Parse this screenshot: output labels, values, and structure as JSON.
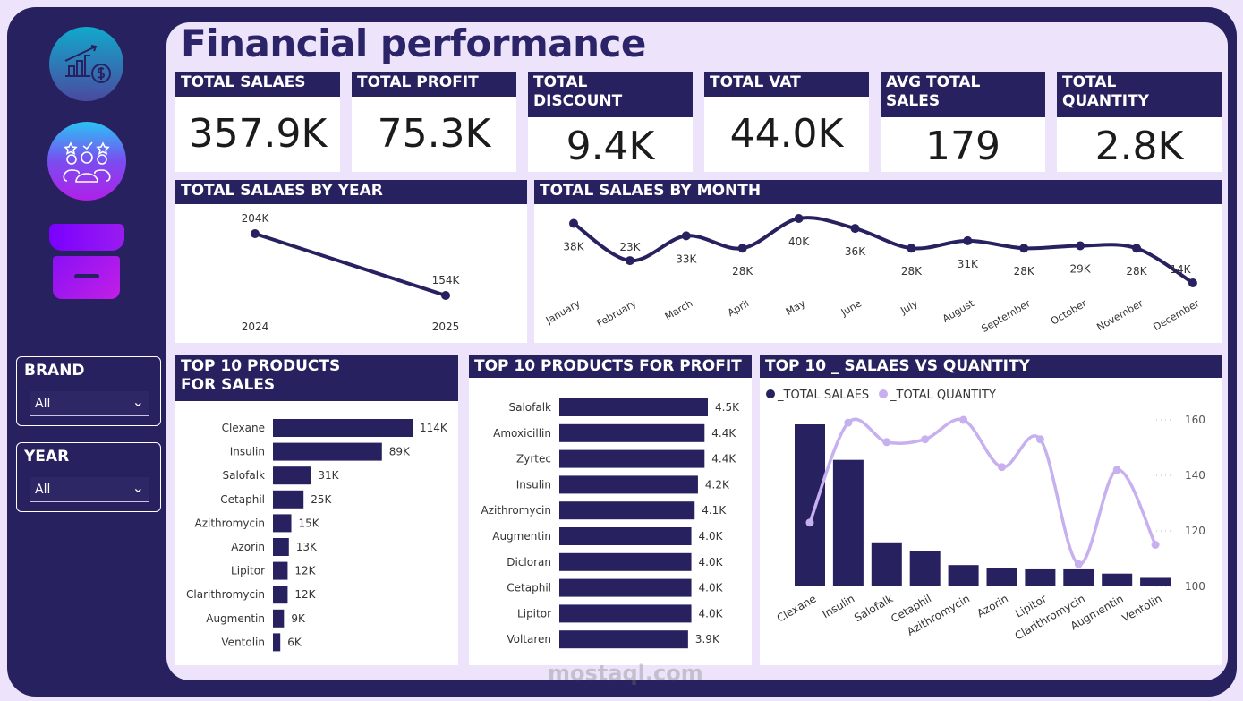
{
  "title": "Financial performance",
  "colors": {
    "primary": "#27215f",
    "accent": "#c7b0ef",
    "background": "#ede4fb"
  },
  "nav": {
    "icons": [
      "finance-growth-icon",
      "customers-rating-icon",
      "store-icon"
    ]
  },
  "slicers": [
    {
      "label": "BRAND",
      "value": "All"
    },
    {
      "label": "YEAR",
      "value": "All"
    }
  ],
  "kpis": [
    {
      "label": "TOTAL SALAES",
      "value": "357.9K"
    },
    {
      "label": "TOTAL PROFIT",
      "value": "75.3K"
    },
    {
      "label": "TOTAL DISCOUNT",
      "value": "9.4K"
    },
    {
      "label": "TOTAL VAT",
      "value": "44.0K"
    },
    {
      "label": "AVG TOTAL SALES",
      "value": "179"
    },
    {
      "label": "TOTAL QUANTITY",
      "value": "2.8K"
    }
  ],
  "watermark": "mostaql.com",
  "chart_data": [
    {
      "type": "line",
      "title": "TOTAL SALAES BY YEAR",
      "categories": [
        "2024",
        "2025"
      ],
      "values": [
        204,
        154
      ],
      "labels": [
        "204K",
        "154K"
      ]
    },
    {
      "type": "line",
      "title": "TOTAL SALAES BY MONTH",
      "categories": [
        "January",
        "February",
        "March",
        "April",
        "May",
        "June",
        "July",
        "August",
        "September",
        "October",
        "November",
        "December"
      ],
      "values": [
        38,
        23,
        33,
        28,
        40,
        36,
        28,
        31,
        28,
        29,
        28,
        14
      ],
      "labels": [
        "38K",
        "23K",
        "33K",
        "28K",
        "40K",
        "36K",
        "28K",
        "31K",
        "28K",
        "29K",
        "28K",
        "14K"
      ]
    },
    {
      "type": "bar",
      "orientation": "horizontal",
      "title": "TOP 10 PRODUCTS FOR SALES",
      "categories": [
        "Clexane",
        "Insulin",
        "Salofalk",
        "Cetaphil",
        "Azithromycin",
        "Azorin",
        "Lipitor",
        "Clarithromycin",
        "Augmentin",
        "Ventolin"
      ],
      "values": [
        114,
        89,
        31,
        25,
        15,
        13,
        12,
        12,
        9,
        6
      ],
      "labels": [
        "114K",
        "89K",
        "31K",
        "25K",
        "15K",
        "13K",
        "12K",
        "12K",
        "9K",
        "6K"
      ]
    },
    {
      "type": "bar",
      "orientation": "horizontal",
      "title": "TOP 10 PRODUCTS FOR PROFIT",
      "categories": [
        "Salofalk",
        "Amoxicillin",
        "Zyrtec",
        "Insulin",
        "Azithromycin",
        "Augmentin",
        "Dicloran",
        "Cetaphil",
        "Lipitor",
        "Voltaren"
      ],
      "values": [
        4.5,
        4.4,
        4.4,
        4.2,
        4.1,
        4.0,
        4.0,
        4.0,
        4.0,
        3.9
      ],
      "labels": [
        "4.5K",
        "4.4K",
        "4.4K",
        "4.2K",
        "4.1K",
        "4.0K",
        "4.0K",
        "4.0K",
        "4.0K",
        "3.9K"
      ]
    },
    {
      "type": "bar",
      "title": "TOP 10 _ SALAES VS QUANTITY",
      "categories": [
        "Clexane",
        "Insulin",
        "Salofalk",
        "Cetaphil",
        "Azithromycin",
        "Azorin",
        "Lipitor",
        "Clarithromycin",
        "Augmentin",
        "Ventolin"
      ],
      "series": [
        {
          "name": "_TOTAL SALAES",
          "type": "bar",
          "values": [
            114,
            89,
            31,
            25,
            15,
            13,
            12,
            12,
            9,
            6
          ]
        },
        {
          "name": "_TOTAL QUANTITY",
          "type": "line",
          "axis": "right",
          "values": [
            123,
            159,
            152,
            153,
            160,
            143,
            153,
            108,
            142,
            115
          ]
        }
      ],
      "y2_ticks": [
        "100",
        "120",
        "140",
        "160"
      ],
      "y2lim": [
        100,
        160
      ],
      "legend": "top-left"
    }
  ]
}
